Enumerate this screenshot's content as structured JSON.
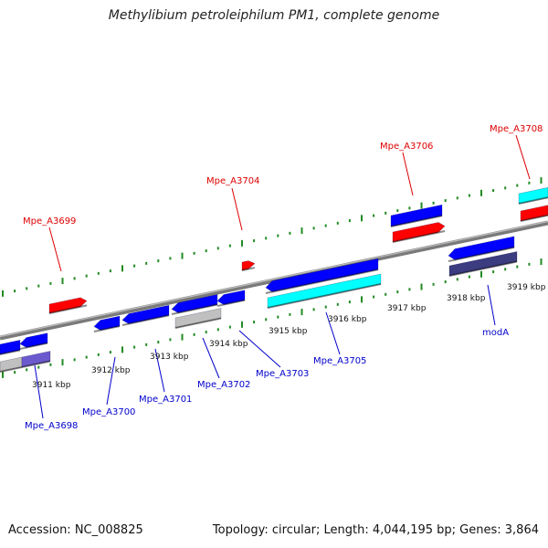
{
  "title": "Methylibium petroleiphilum PM1, complete genome",
  "accession": "Accession: NC_008825",
  "summary": "Topology: circular; Length: 4,044,195 bp; Genes: 3,864",
  "colors": {
    "top_label": "#dd0000",
    "bottom_label": "#0000cc",
    "forward_gene": "#ff0000",
    "reverse_gene": "#0000ff",
    "cyan_feature": "#00ffff",
    "grey_feature": "#c0c0c0",
    "lavender_feature": "#6a5acd",
    "dark_feature": "#3c3c80",
    "tick": "#228b22",
    "backbone": "#888888"
  },
  "scale_labels": [
    "3911 kbp",
    "3912 kbp",
    "3913 kbp",
    "3914 kbp",
    "3915 kbp",
    "3916 kbp",
    "3917 kbp",
    "3918 kbp",
    "3919 kbp"
  ],
  "top_gene_labels": [
    "Mpe_A3699",
    "Mpe_A3704",
    "Mpe_A3706",
    "Mpe_A3708"
  ],
  "bottom_gene_labels": [
    "Mpe_A3698",
    "Mpe_A3700",
    "Mpe_A3701",
    "Mpe_A3702",
    "Mpe_A3703",
    "Mpe_A3705",
    "modA"
  ]
}
